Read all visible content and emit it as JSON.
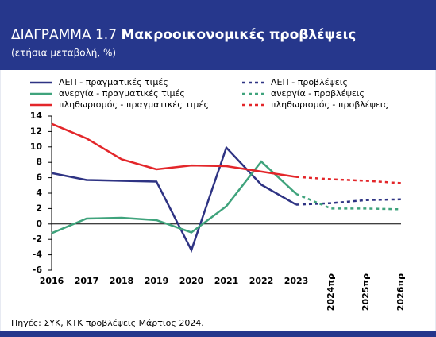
{
  "chart_data": {
    "type": "line",
    "title_prefix": "ΔΙΑΓΡΑΜΜΑ 1.7",
    "title": "Μακροοικονομικές προβλέψεις",
    "subtitle": "(ετήσια μεταβολή, %)",
    "source": "Πηγές: ΣΥΚ, ΚΤΚ προβλέψεις Μάρτιος 2024.",
    "categories": [
      "2016",
      "2017",
      "2018",
      "2019",
      "2020",
      "2021",
      "2022",
      "2023",
      "2024πρ",
      "2025πρ",
      "2026πρ"
    ],
    "ylim": [
      -6,
      14
    ],
    "yticks": [
      -6,
      -4,
      -2,
      0,
      2,
      4,
      6,
      8,
      10,
      12,
      14
    ],
    "series": [
      {
        "name": "ΑΕΠ - πραγματικές τιμές",
        "color": "#2e3383",
        "line_style": "solid",
        "values": [
          6.6,
          5.7,
          5.6,
          5.5,
          -3.4,
          9.9,
          5.1,
          2.5,
          null,
          null,
          null
        ]
      },
      {
        "name": "ΑΕΠ - προβλέψεις",
        "color": "#2e3383",
        "line_style": "dashed",
        "values": [
          null,
          null,
          null,
          null,
          null,
          null,
          null,
          2.5,
          2.7,
          3.1,
          3.2
        ]
      },
      {
        "name": "ανεργία - πραγματικές τιμές",
        "color": "#3fa37c",
        "line_style": "solid",
        "values": [
          -1.2,
          0.7,
          0.8,
          0.5,
          -1.1,
          2.3,
          8.1,
          3.9,
          null,
          null,
          null
        ]
      },
      {
        "name": "ανεργία - προβλέψεις",
        "color": "#3fa37c",
        "line_style": "dashed",
        "values": [
          null,
          null,
          null,
          null,
          null,
          null,
          null,
          3.9,
          2.0,
          2.0,
          1.9
        ]
      },
      {
        "name": "πληθωρισμός - πραγματικές τιμές",
        "color": "#e3262a",
        "line_style": "solid",
        "values": [
          13.0,
          11.1,
          8.4,
          7.1,
          7.6,
          7.5,
          6.8,
          6.1,
          null,
          null,
          null
        ]
      },
      {
        "name": "πληθωρισμός - προβλέψεις",
        "color": "#e3262a",
        "line_style": "dashed",
        "values": [
          null,
          null,
          null,
          null,
          null,
          null,
          null,
          6.1,
          5.8,
          5.6,
          5.3
        ]
      }
    ]
  }
}
